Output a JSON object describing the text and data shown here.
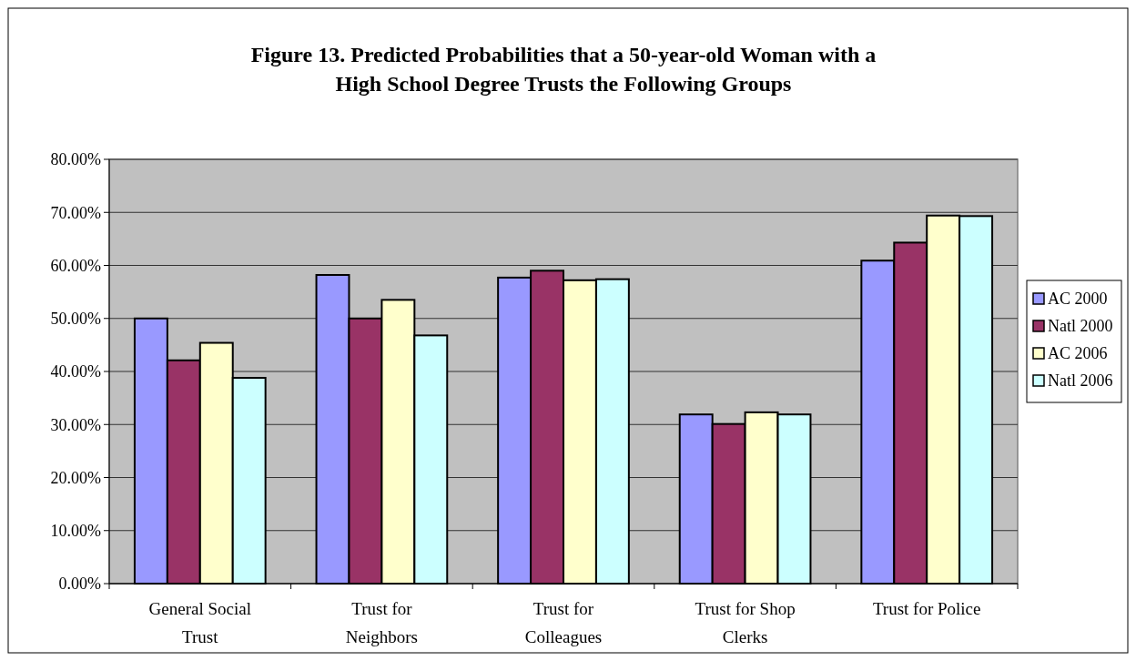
{
  "chart_data": {
    "type": "bar",
    "title": "Figure 13. Predicted Probabilities that a 50-year-old Woman with a High School Degree Trusts the Following Groups",
    "categories": [
      "General Social Trust",
      "Trust for Neighbors",
      "Trust for Colleagues",
      "Trust for Shop Clerks",
      "Trust for Police"
    ],
    "series": [
      {
        "name": "AC 2000",
        "color": "#9999ff",
        "values": [
          50.0,
          58.2,
          57.7,
          31.9,
          60.9
        ]
      },
      {
        "name": "Natl 2000",
        "color": "#993366",
        "values": [
          42.1,
          50.0,
          59.0,
          30.1,
          64.3
        ]
      },
      {
        "name": "AC 2006",
        "color": "#ffffcc",
        "values": [
          45.4,
          53.5,
          57.2,
          32.3,
          69.4
        ]
      },
      {
        "name": "Natl 2006",
        "color": "#ccffff",
        "values": [
          38.8,
          46.8,
          57.4,
          31.9,
          69.3
        ]
      }
    ],
    "ylim": [
      0,
      80
    ],
    "yticks": [
      {
        "value": 0,
        "label": "0.00%"
      },
      {
        "value": 10,
        "label": "10.00%"
      },
      {
        "value": 20,
        "label": "20.00%"
      },
      {
        "value": 30,
        "label": "30.00%"
      },
      {
        "value": 40,
        "label": "40.00%"
      },
      {
        "value": 50,
        "label": "50.00%"
      },
      {
        "value": 60,
        "label": "60.00%"
      },
      {
        "value": 70,
        "label": "70.00%"
      },
      {
        "value": 80,
        "label": "80.00%"
      }
    ],
    "grid": "y",
    "legend": "right"
  }
}
